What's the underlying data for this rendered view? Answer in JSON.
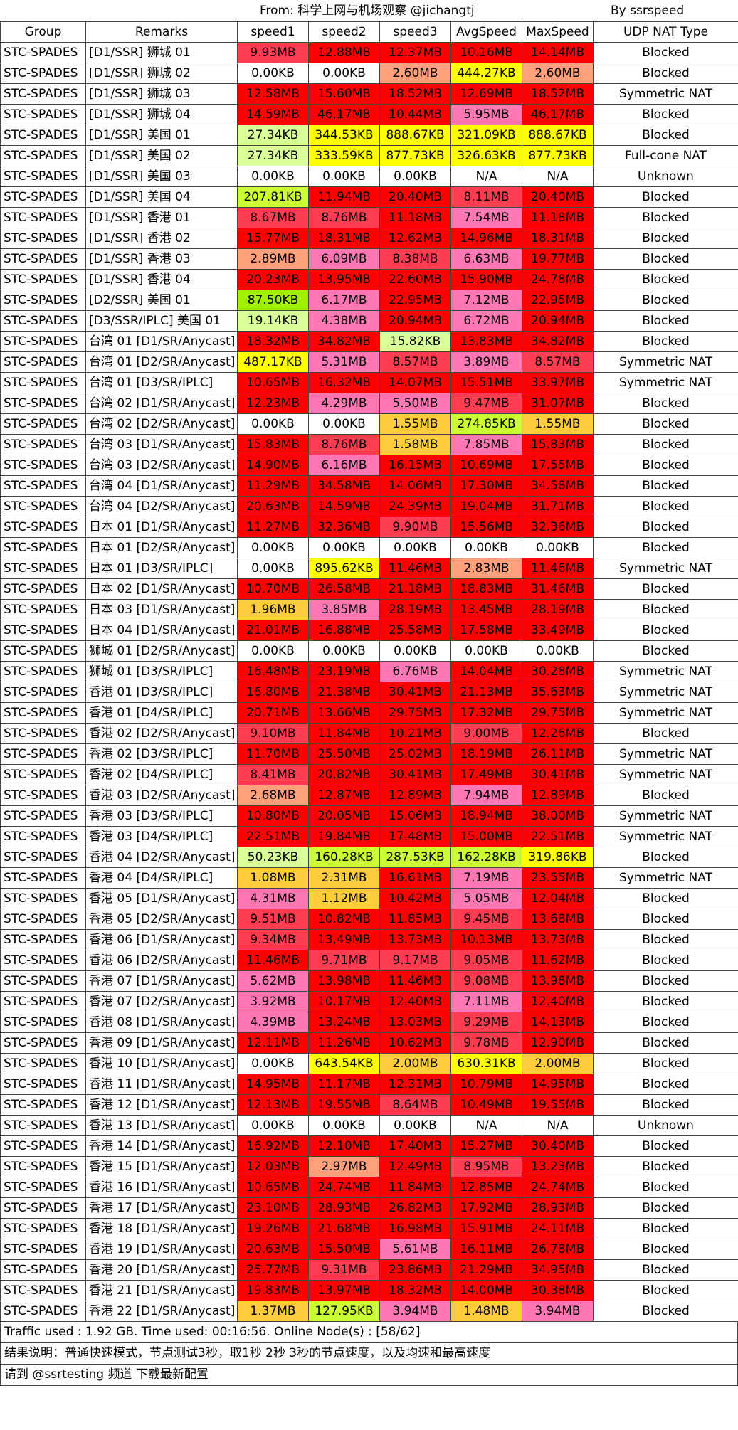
{
  "header": {
    "source": "From: 科学上网与机场观察 @jichangtj",
    "by": "By ssrspeed"
  },
  "colors": {
    "red": "#ff0000",
    "tomato": "#ff3c50",
    "pink": "#ff78b4",
    "salmon": "#ffa07a",
    "orange": "#ffcc3c",
    "yellow": "#ffff00",
    "lime": "#ccff33",
    "green": "#a0f000",
    "paleLime": "#d9ff99",
    "none": "#ffffff"
  },
  "chart_data": {
    "type": "table",
    "columns": [
      "Group",
      "Remarks",
      "speed1",
      "speed2",
      "speed3",
      "AvgSpeed",
      "MaxSpeed",
      "UDP NAT Type"
    ],
    "rows": [
      [
        "STC-SPADES",
        "[D1/SSR] 狮城 01",
        "9.93MB",
        "12.88MB",
        "12.37MB",
        "10.16MB",
        "14.14MB",
        "Blocked"
      ],
      [
        "STC-SPADES",
        "[D1/SSR] 狮城 02",
        "0.00KB",
        "0.00KB",
        "2.60MB",
        "444.27KB",
        "2.60MB",
        "Blocked"
      ],
      [
        "STC-SPADES",
        "[D1/SSR] 狮城 03",
        "12.58MB",
        "15.60MB",
        "18.52MB",
        "12.69MB",
        "18.52MB",
        "Symmetric NAT"
      ],
      [
        "STC-SPADES",
        "[D1/SSR] 狮城 04",
        "14.59MB",
        "46.17MB",
        "10.44MB",
        "5.95MB",
        "46.17MB",
        "Blocked"
      ],
      [
        "STC-SPADES",
        "[D1/SSR] 美国 01",
        "27.34KB",
        "344.53KB",
        "888.67KB",
        "321.09KB",
        "888.67KB",
        "Blocked"
      ],
      [
        "STC-SPADES",
        "[D1/SSR] 美国 02",
        "27.34KB",
        "333.59KB",
        "877.73KB",
        "326.63KB",
        "877.73KB",
        "Full-cone NAT"
      ],
      [
        "STC-SPADES",
        "[D1/SSR] 美国 03",
        "0.00KB",
        "0.00KB",
        "0.00KB",
        "N/A",
        "N/A",
        "Unknown"
      ],
      [
        "STC-SPADES",
        "[D1/SSR] 美国 04",
        "207.81KB",
        "11.94MB",
        "20.40MB",
        "8.11MB",
        "20.40MB",
        "Blocked"
      ],
      [
        "STC-SPADES",
        "[D1/SSR] 香港 01",
        "8.67MB",
        "8.76MB",
        "11.18MB",
        "7.54MB",
        "11.18MB",
        "Blocked"
      ],
      [
        "STC-SPADES",
        "[D1/SSR] 香港 02",
        "15.77MB",
        "18.31MB",
        "12.62MB",
        "14.96MB",
        "18.31MB",
        "Blocked"
      ],
      [
        "STC-SPADES",
        "[D1/SSR] 香港 03",
        "2.89MB",
        "6.09MB",
        "8.38MB",
        "6.63MB",
        "19.77MB",
        "Blocked"
      ],
      [
        "STC-SPADES",
        "[D1/SSR] 香港 04",
        "20.23MB",
        "13.95MB",
        "22.60MB",
        "15.90MB",
        "24.78MB",
        "Blocked"
      ],
      [
        "STC-SPADES",
        "[D2/SSR] 美国 01",
        "87.50KB",
        "6.17MB",
        "22.95MB",
        "7.12MB",
        "22.95MB",
        "Blocked"
      ],
      [
        "STC-SPADES",
        "[D3/SSR/IPLC] 美国 01",
        "19.14KB",
        "4.38MB",
        "20.94MB",
        "6.72MB",
        "20.94MB",
        "Blocked"
      ],
      [
        "STC-SPADES",
        "台湾 01 [D1/SR/Anycast]",
        "18.32MB",
        "34.82MB",
        "15.82KB",
        "13.83MB",
        "34.82MB",
        "Blocked"
      ],
      [
        "STC-SPADES",
        "台湾 01 [D2/SR/Anycast]",
        "487.17KB",
        "5.31MB",
        "8.57MB",
        "3.89MB",
        "8.57MB",
        "Symmetric NAT"
      ],
      [
        "STC-SPADES",
        "台湾 01 [D3/SR/IPLC]",
        "10.65MB",
        "16.32MB",
        "14.07MB",
        "15.51MB",
        "33.97MB",
        "Symmetric NAT"
      ],
      [
        "STC-SPADES",
        "台湾 02 [D1/SR/Anycast]",
        "12.23MB",
        "4.29MB",
        "5.50MB",
        "9.47MB",
        "31.07MB",
        "Blocked"
      ],
      [
        "STC-SPADES",
        "台湾 02 [D2/SR/Anycast]",
        "0.00KB",
        "0.00KB",
        "1.55MB",
        "274.85KB",
        "1.55MB",
        "Blocked"
      ],
      [
        "STC-SPADES",
        "台湾 03 [D1/SR/Anycast]",
        "15.83MB",
        "8.76MB",
        "1.58MB",
        "7.85MB",
        "15.83MB",
        "Blocked"
      ],
      [
        "STC-SPADES",
        "台湾 03 [D2/SR/Anycast]",
        "14.90MB",
        "6.16MB",
        "16.15MB",
        "10.69MB",
        "17.55MB",
        "Blocked"
      ],
      [
        "STC-SPADES",
        "台湾 04 [D1/SR/Anycast]",
        "11.29MB",
        "34.58MB",
        "14.06MB",
        "17.30MB",
        "34.58MB",
        "Blocked"
      ],
      [
        "STC-SPADES",
        "台湾 04 [D2/SR/Anycast]",
        "20.63MB",
        "14.59MB",
        "24.39MB",
        "19.04MB",
        "31.71MB",
        "Blocked"
      ],
      [
        "STC-SPADES",
        "日本 01 [D1/SR/Anycast]",
        "11.27MB",
        "32.36MB",
        "9.90MB",
        "15.56MB",
        "32.36MB",
        "Blocked"
      ],
      [
        "STC-SPADES",
        "日本 01 [D2/SR/Anycast]",
        "0.00KB",
        "0.00KB",
        "0.00KB",
        "0.00KB",
        "0.00KB",
        "Blocked"
      ],
      [
        "STC-SPADES",
        "日本 01 [D3/SR/IPLC]",
        "0.00KB",
        "895.62KB",
        "11.46MB",
        "2.83MB",
        "11.46MB",
        "Symmetric NAT"
      ],
      [
        "STC-SPADES",
        "日本 02 [D1/SR/Anycast]",
        "10.70MB",
        "26.58MB",
        "21.18MB",
        "18.83MB",
        "31.46MB",
        "Blocked"
      ],
      [
        "STC-SPADES",
        "日本 03 [D1/SR/Anycast]",
        "1.96MB",
        "3.85MB",
        "28.19MB",
        "13.45MB",
        "28.19MB",
        "Blocked"
      ],
      [
        "STC-SPADES",
        "日本 04 [D1/SR/Anycast]",
        "21.01MB",
        "16.88MB",
        "25.58MB",
        "17.58MB",
        "33.49MB",
        "Blocked"
      ],
      [
        "STC-SPADES",
        "狮城 01 [D2/SR/Anycast]",
        "0.00KB",
        "0.00KB",
        "0.00KB",
        "0.00KB",
        "0.00KB",
        "Blocked"
      ],
      [
        "STC-SPADES",
        "狮城 01 [D3/SR/IPLC]",
        "16.48MB",
        "23.19MB",
        "6.76MB",
        "14.04MB",
        "30.28MB",
        "Symmetric NAT"
      ],
      [
        "STC-SPADES",
        "香港 01 [D3/SR/IPLC]",
        "16.80MB",
        "21.38MB",
        "30.41MB",
        "21.13MB",
        "35.63MB",
        "Symmetric NAT"
      ],
      [
        "STC-SPADES",
        "香港 01 [D4/SR/IPLC]",
        "20.71MB",
        "13.66MB",
        "29.75MB",
        "17.32MB",
        "29.75MB",
        "Symmetric NAT"
      ],
      [
        "STC-SPADES",
        "香港 02 [D2/SR/Anycast]",
        "9.10MB",
        "11.84MB",
        "10.21MB",
        "9.00MB",
        "12.26MB",
        "Blocked"
      ],
      [
        "STC-SPADES",
        "香港 02 [D3/SR/IPLC]",
        "11.70MB",
        "25.50MB",
        "25.02MB",
        "18.19MB",
        "26.11MB",
        "Symmetric NAT"
      ],
      [
        "STC-SPADES",
        "香港 02 [D4/SR/IPLC]",
        "8.41MB",
        "20.82MB",
        "30.41MB",
        "17.49MB",
        "30.41MB",
        "Symmetric NAT"
      ],
      [
        "STC-SPADES",
        "香港 03 [D2/SR/Anycast]",
        "2.68MB",
        "12.87MB",
        "12.89MB",
        "7.94MB",
        "12.89MB",
        "Blocked"
      ],
      [
        "STC-SPADES",
        "香港 03 [D3/SR/IPLC]",
        "10.80MB",
        "20.05MB",
        "15.06MB",
        "18.94MB",
        "38.00MB",
        "Symmetric NAT"
      ],
      [
        "STC-SPADES",
        "香港 03 [D4/SR/IPLC]",
        "22.51MB",
        "19.84MB",
        "17.48MB",
        "15.00MB",
        "22.51MB",
        "Symmetric NAT"
      ],
      [
        "STC-SPADES",
        "香港 04 [D2/SR/Anycast]",
        "50.23KB",
        "160.28KB",
        "287.53KB",
        "162.28KB",
        "319.86KB",
        "Blocked"
      ],
      [
        "STC-SPADES",
        "香港 04 [D4/SR/IPLC]",
        "1.08MB",
        "2.31MB",
        "16.61MB",
        "7.19MB",
        "23.55MB",
        "Symmetric NAT"
      ],
      [
        "STC-SPADES",
        "香港 05 [D1/SR/Anycast]",
        "4.31MB",
        "1.12MB",
        "10.42MB",
        "5.05MB",
        "12.04MB",
        "Blocked"
      ],
      [
        "STC-SPADES",
        "香港 05 [D2/SR/Anycast]",
        "9.51MB",
        "10.82MB",
        "11.85MB",
        "9.45MB",
        "13.68MB",
        "Blocked"
      ],
      [
        "STC-SPADES",
        "香港 06 [D1/SR/Anycast]",
        "9.34MB",
        "13.49MB",
        "13.73MB",
        "10.13MB",
        "13.73MB",
        "Blocked"
      ],
      [
        "STC-SPADES",
        "香港 06 [D2/SR/Anycast]",
        "11.46MB",
        "9.71MB",
        "9.17MB",
        "9.05MB",
        "11.62MB",
        "Blocked"
      ],
      [
        "STC-SPADES",
        "香港 07 [D1/SR/Anycast]",
        "5.62MB",
        "13.98MB",
        "11.46MB",
        "9.08MB",
        "13.98MB",
        "Blocked"
      ],
      [
        "STC-SPADES",
        "香港 07 [D2/SR/Anycast]",
        "3.92MB",
        "10.17MB",
        "12.40MB",
        "7.11MB",
        "12.40MB",
        "Blocked"
      ],
      [
        "STC-SPADES",
        "香港 08 [D1/SR/Anycast]",
        "4.39MB",
        "13.24MB",
        "13.03MB",
        "9.29MB",
        "14.13MB",
        "Blocked"
      ],
      [
        "STC-SPADES",
        "香港 09 [D1/SR/Anycast]",
        "12.11MB",
        "11.26MB",
        "10.62MB",
        "9.78MB",
        "12.90MB",
        "Blocked"
      ],
      [
        "STC-SPADES",
        "香港 10 [D1/SR/Anycast]",
        "0.00KB",
        "643.54KB",
        "2.00MB",
        "630.31KB",
        "2.00MB",
        "Blocked"
      ],
      [
        "STC-SPADES",
        "香港 11 [D1/SR/Anycast]",
        "14.95MB",
        "11.17MB",
        "12.31MB",
        "10.79MB",
        "14.95MB",
        "Blocked"
      ],
      [
        "STC-SPADES",
        "香港 12 [D1/SR/Anycast]",
        "12.13MB",
        "19.55MB",
        "8.64MB",
        "10.49MB",
        "19.55MB",
        "Blocked"
      ],
      [
        "STC-SPADES",
        "香港 13 [D1/SR/Anycast]",
        "0.00KB",
        "0.00KB",
        "0.00KB",
        "N/A",
        "N/A",
        "Unknown"
      ],
      [
        "STC-SPADES",
        "香港 14 [D1/SR/Anycast]",
        "16.92MB",
        "12.10MB",
        "17.40MB",
        "15.27MB",
        "30.40MB",
        "Blocked"
      ],
      [
        "STC-SPADES",
        "香港 15 [D1/SR/Anycast]",
        "12.03MB",
        "2.97MB",
        "12.49MB",
        "8.95MB",
        "13.23MB",
        "Blocked"
      ],
      [
        "STC-SPADES",
        "香港 16 [D1/SR/Anycast]",
        "10.65MB",
        "24.74MB",
        "11.84MB",
        "12.85MB",
        "24.74MB",
        "Blocked"
      ],
      [
        "STC-SPADES",
        "香港 17 [D1/SR/Anycast]",
        "23.10MB",
        "28.93MB",
        "26.82MB",
        "17.92MB",
        "28.93MB",
        "Blocked"
      ],
      [
        "STC-SPADES",
        "香港 18 [D1/SR/Anycast]",
        "19.26MB",
        "21.68MB",
        "16.98MB",
        "15.91MB",
        "24.11MB",
        "Blocked"
      ],
      [
        "STC-SPADES",
        "香港 19 [D1/SR/Anycast]",
        "20.63MB",
        "15.50MB",
        "5.61MB",
        "16.11MB",
        "26.78MB",
        "Blocked"
      ],
      [
        "STC-SPADES",
        "香港 20 [D1/SR/Anycast]",
        "25.77MB",
        "9.31MB",
        "23.86MB",
        "21.29MB",
        "34.95MB",
        "Blocked"
      ],
      [
        "STC-SPADES",
        "香港 21 [D1/SR/Anycast]",
        "19.83MB",
        "13.97MB",
        "18.32MB",
        "14.00MB",
        "30.38MB",
        "Blocked"
      ],
      [
        "STC-SPADES",
        "香港 22 [D1/SR/Anycast]",
        "1.37MB",
        "127.95KB",
        "3.94MB",
        "1.48MB",
        "3.94MB",
        "Blocked"
      ]
    ]
  },
  "footer": {
    "line1": "Traffic used : 1.92 GB. Time used: 00:16:56. Online Node(s) : [58/62]",
    "line2": "结果说明：普通快速模式，节点测试3秒，取1秒 2秒 3秒的节点速度，以及均速和最高速度",
    "line3": "请到 @ssrtesting 频道 下载最新配置"
  }
}
